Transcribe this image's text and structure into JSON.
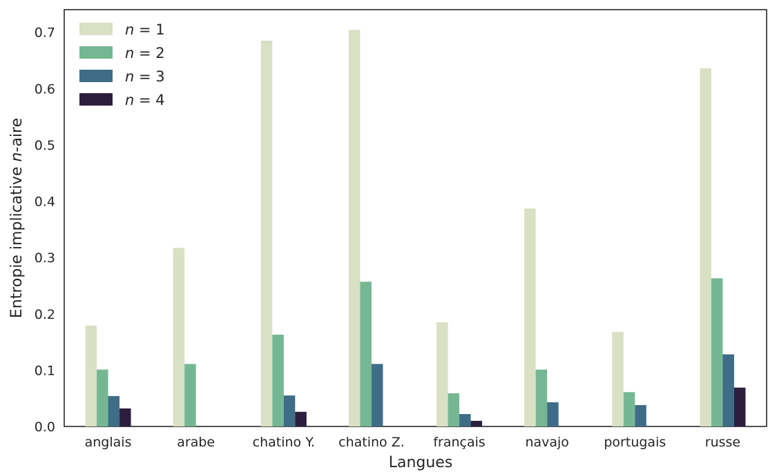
{
  "chart_data": {
    "type": "bar",
    "xlabel": "Langues",
    "ylabel_prefix": "Entropie implicative ",
    "ylabel_italic": "n",
    "ylabel_suffix": "-aire",
    "ylim": [
      0,
      0.74
    ],
    "yticks": [
      "0.0",
      "0.1",
      "0.2",
      "0.3",
      "0.4",
      "0.5",
      "0.6",
      "0.7"
    ],
    "grid": false,
    "legend_position": "top-left",
    "categories": [
      "anglais",
      "arabe",
      "chatino Y.",
      "chatino Z.",
      "français",
      "navajo",
      "portugais",
      "russe"
    ],
    "series": [
      {
        "name": "n = 1",
        "n": "n",
        "eq": "= 1",
        "color": "#d9e0c3",
        "values": [
          0.179,
          0.317,
          0.685,
          0.704,
          0.185,
          0.387,
          0.168,
          0.636
        ]
      },
      {
        "name": "n = 2",
        "n": "n",
        "eq": "= 2",
        "color": "#76b793",
        "values": [
          0.101,
          0.111,
          0.163,
          0.257,
          0.059,
          0.101,
          0.061,
          0.263
        ]
      },
      {
        "name": "n = 3",
        "n": "n",
        "eq": "= 3",
        "color": "#3f6d87",
        "values": [
          0.054,
          0.0,
          0.055,
          0.111,
          0.022,
          0.043,
          0.038,
          0.128
        ]
      },
      {
        "name": "n = 4",
        "n": "n",
        "eq": "= 4",
        "color": "#2d1e3e",
        "values": [
          0.032,
          0.0,
          0.026,
          0.0,
          0.01,
          0.0,
          0.0,
          0.069
        ]
      }
    ]
  }
}
